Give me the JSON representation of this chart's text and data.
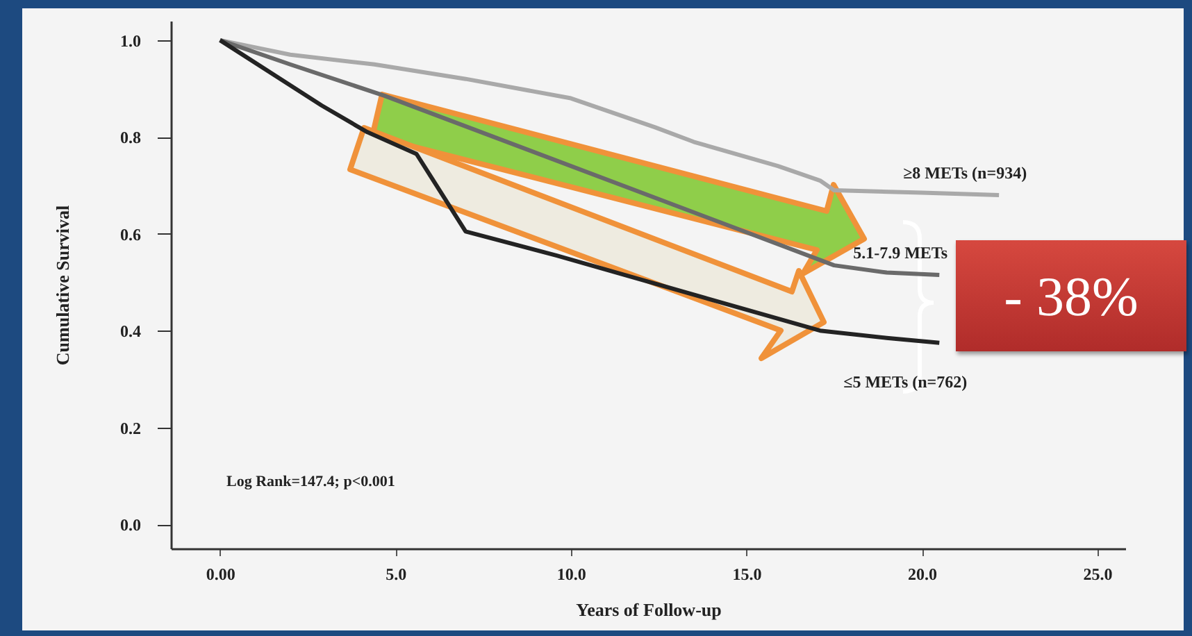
{
  "chart_data": {
    "type": "line",
    "xlabel": "Years of Follow-up",
    "ylabel": "Cumulative Survival",
    "xlim": [
      -1.4,
      25.8
    ],
    "ylim": [
      -0.05,
      1.04
    ],
    "xticks": [
      {
        "value": 0,
        "label": "0.00"
      },
      {
        "value": 5,
        "label": "5.0"
      },
      {
        "value": 10,
        "label": "10.0"
      },
      {
        "value": 15,
        "label": "15.0"
      },
      {
        "value": 20,
        "label": "20.0"
      },
      {
        "value": 25,
        "label": "25.0"
      }
    ],
    "yticks": [
      {
        "value": 0,
        "label": "0.0"
      },
      {
        "value": 0.2,
        "label": "0.2"
      },
      {
        "value": 0.4,
        "label": "0.4"
      },
      {
        "value": 0.6,
        "label": "0.6"
      },
      {
        "value": 0.8,
        "label": "0.8"
      },
      {
        "value": 1,
        "label": "1.0"
      }
    ],
    "series": [
      {
        "name": "≥8 METs  (n=934)",
        "color": "#a9a9a9",
        "x": [
          0,
          2,
          4.4,
          7,
          10,
          12.4,
          13.5,
          15.9,
          17.1,
          17.5,
          20,
          22.2
        ],
        "values": [
          1,
          0.97,
          0.95,
          0.92,
          0.88,
          0.82,
          0.79,
          0.74,
          0.71,
          0.69,
          0.685,
          0.68
        ]
      },
      {
        "name": "5.1-7.9 METs",
        "color": "#6a6a6a",
        "x": [
          0,
          2,
          4.7,
          17.5,
          19,
          20.5
        ],
        "values": [
          1,
          0.95,
          0.885,
          0.535,
          0.52,
          0.515
        ]
      },
      {
        "name": "≤5 METs (n=762)",
        "color": "#232323",
        "x": [
          0,
          2.9,
          4.2,
          5.6,
          7,
          9.6,
          17.1,
          19,
          20.5
        ],
        "values": [
          1,
          0.865,
          0.81,
          0.765,
          0.605,
          0.555,
          0.4,
          0.385,
          0.375
        ]
      }
    ],
    "annotations": [
      "Log Rank=147.4; p<0.001",
      "- 38%"
    ],
    "grid": false,
    "marker": "none",
    "line_style": "solid"
  }
}
